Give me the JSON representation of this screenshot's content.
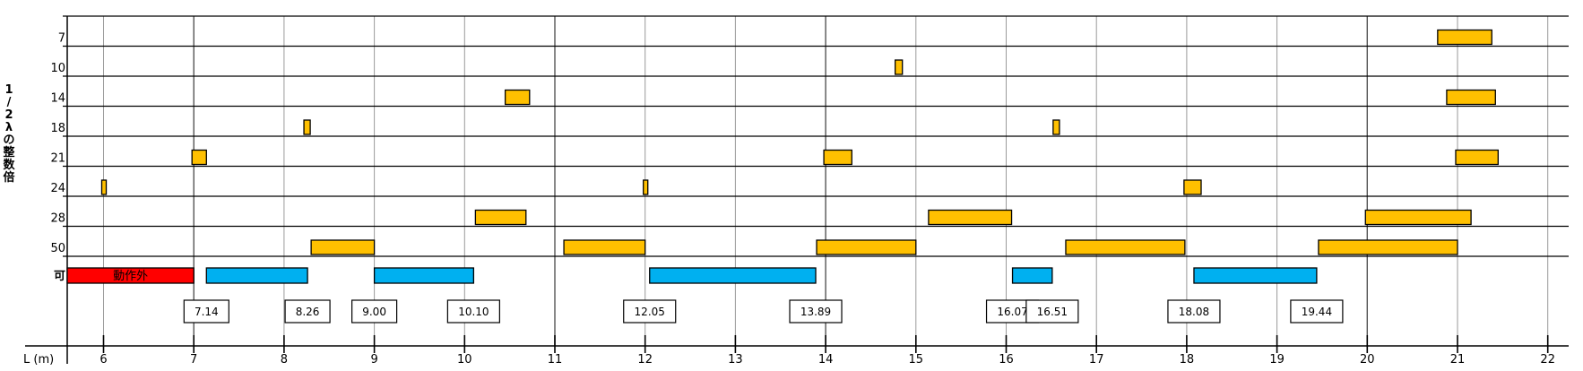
{
  "chart_data": {
    "type": "bar",
    "ylabel_vertical": [
      "1",
      "/",
      "2",
      "λ",
      "の",
      "整",
      "数",
      "倍"
    ],
    "xlabel": "L (m)",
    "xlim": [
      5.6,
      22.2
    ],
    "x_ticks": [
      6,
      7,
      8,
      9,
      10,
      11,
      12,
      13,
      14,
      15,
      16,
      17,
      18,
      19,
      20,
      21,
      22
    ],
    "rows": [
      "7",
      "10",
      "14",
      "18",
      "21",
      "24",
      "28",
      "50"
    ],
    "ok_row_label": "可",
    "colors": {
      "resonance": "#FFC000",
      "ok": "#00B0F0",
      "inoperable": "#FF0000",
      "line": "#000000",
      "grid": "#9A9A9A"
    },
    "series": [
      {
        "name": "7",
        "ranges": [
          [
            20.78,
            21.38
          ]
        ]
      },
      {
        "name": "10",
        "ranges": [
          [
            14.77,
            14.85
          ]
        ]
      },
      {
        "name": "14",
        "ranges": [
          [
            10.45,
            10.72
          ],
          [
            20.88,
            21.42
          ]
        ]
      },
      {
        "name": "18",
        "ranges": [
          [
            8.22,
            8.29
          ],
          [
            16.52,
            16.59
          ]
        ]
      },
      {
        "name": "21",
        "ranges": [
          [
            6.98,
            7.14
          ],
          [
            13.98,
            14.29
          ],
          [
            20.98,
            21.45
          ]
        ]
      },
      {
        "name": "24",
        "ranges": [
          [
            5.98,
            6.03
          ],
          [
            11.98,
            12.03
          ],
          [
            17.97,
            18.16
          ]
        ]
      },
      {
        "name": "28",
        "ranges": [
          [
            10.12,
            10.68
          ],
          [
            15.14,
            16.06
          ],
          [
            19.98,
            21.15
          ]
        ]
      },
      {
        "name": "50",
        "ranges": [
          [
            8.3,
            9.0
          ],
          [
            11.1,
            12.0
          ],
          [
            13.9,
            15.0
          ],
          [
            16.66,
            17.98
          ],
          [
            19.46,
            21.0
          ]
        ]
      }
    ],
    "ok_row": {
      "inoperable": {
        "range": [
          5.6,
          7.0
        ],
        "label": "動作外"
      },
      "ok_ranges": [
        [
          7.14,
          8.26
        ],
        [
          9.0,
          10.1
        ],
        [
          12.05,
          13.89
        ],
        [
          16.07,
          16.51
        ],
        [
          18.08,
          19.44
        ]
      ]
    },
    "annotations": [
      {
        "label": "7.14",
        "x": 7.14
      },
      {
        "label": "8.26",
        "x": 8.26
      },
      {
        "label": "9.00",
        "x": 9.0
      },
      {
        "label": "10.10",
        "x": 10.1
      },
      {
        "label": "12.05",
        "x": 12.05
      },
      {
        "label": "13.89",
        "x": 13.89
      },
      {
        "label": "16.07",
        "x": 16.07
      },
      {
        "label": "16.51",
        "x": 16.51
      },
      {
        "label": "18.08",
        "x": 18.08
      },
      {
        "label": "19.44",
        "x": 19.44
      }
    ]
  }
}
